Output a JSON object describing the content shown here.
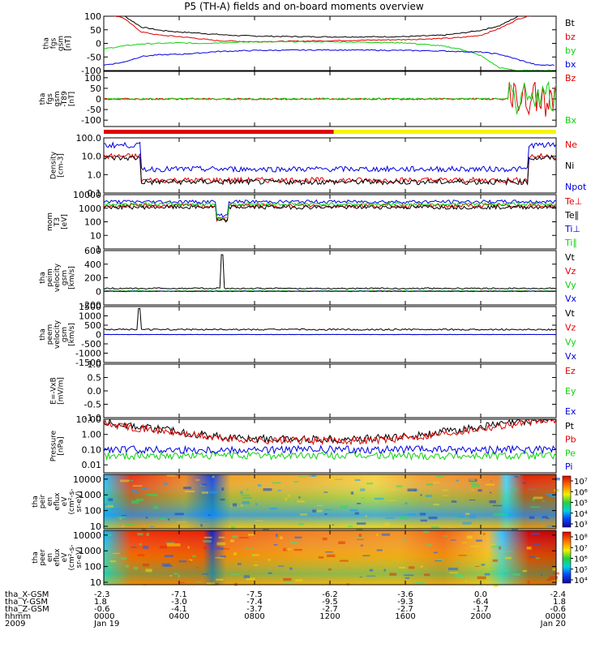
{
  "title": "P5 (TH-A) fields and on-board moments overview",
  "colors": {
    "black": "#000000",
    "red": "#e00000",
    "green": "#10d010",
    "blue": "#0000e0",
    "yellow": "#f5f500",
    "purple": "#a000a0",
    "orange": "#f0a000"
  },
  "chart_data": [
    {
      "type": "line",
      "panel": "fgs",
      "ylabel_lines": [
        "tha",
        "fgs",
        "gsm",
        "[nT]"
      ],
      "yticks": [
        "100",
        "50",
        "0",
        "-50",
        "-100"
      ],
      "ylim": [
        -100,
        100
      ],
      "series": [
        {
          "name": "Bt",
          "color": "#000000"
        },
        {
          "name": "bz",
          "color": "#e00000"
        },
        {
          "name": "by",
          "color": "#10d010"
        },
        {
          "name": "bx",
          "color": "#0000e0"
        }
      ],
      "x_hours": [
        0,
        1,
        2,
        3,
        4,
        5,
        6,
        7,
        8,
        10,
        12,
        14,
        16,
        18,
        19,
        20,
        21,
        22,
        23,
        24
      ],
      "values": {
        "Bt": [
          120,
          105,
          60,
          48,
          42,
          38,
          33,
          29,
          27,
          25,
          24,
          24,
          25,
          30,
          38,
          48,
          65,
          100,
          120,
          120
        ],
        "bz": [
          110,
          95,
          42,
          30,
          25,
          18,
          10,
          8,
          6,
          8,
          10,
          12,
          14,
          18,
          22,
          30,
          55,
          90,
          110,
          110
        ],
        "by": [
          -20,
          -10,
          -2,
          0,
          2,
          0,
          2,
          4,
          6,
          6,
          6,
          4,
          2,
          -10,
          -22,
          -45,
          -90,
          -100,
          -100,
          -100
        ],
        "bx": [
          -80,
          -70,
          -48,
          -42,
          -40,
          -36,
          -30,
          -28,
          -26,
          -25,
          -24,
          -25,
          -26,
          -28,
          -30,
          -32,
          -40,
          -60,
          -80,
          -80
        ]
      }
    },
    {
      "type": "line",
      "panel": "fgs-dsl",
      "ylabel_lines": [
        "tha",
        "fgs",
        "gsm",
        "-T89",
        "[nT]"
      ],
      "yticks": [
        "100",
        "50",
        "0",
        "-50",
        "-100"
      ],
      "ylim": [
        -130,
        130
      ],
      "series": [
        {
          "name": "Bz",
          "color": "#e00000"
        },
        {
          "name": "Bx",
          "color": "#10d010"
        }
      ]
    },
    {
      "type": "line",
      "panel": "density",
      "ylabel_lines": [
        "Density",
        "[cm-3]"
      ],
      "yticks": [
        "100.0",
        "10.0",
        "1.0",
        "0.1"
      ],
      "ylim": [
        0.1,
        100
      ],
      "log": true,
      "series": [
        {
          "name": "Ne",
          "color": "#e00000"
        },
        {
          "name": "Ni",
          "color": "#000000"
        },
        {
          "name": "Npot",
          "color": "#0000e0"
        }
      ]
    },
    {
      "type": "line",
      "panel": "temperature",
      "ylabel_lines": [
        "mom",
        "T3",
        "[eV]"
      ],
      "yticks": [
        "10000",
        "1000",
        "100",
        "10",
        "1"
      ],
      "ylim": [
        1,
        10000
      ],
      "log": true,
      "series": [
        {
          "name": "Te⊥",
          "color": "#e00000"
        },
        {
          "name": "Te∥",
          "color": "#000000"
        },
        {
          "name": "Ti⊥",
          "color": "#0000e0"
        },
        {
          "name": "Ti∥",
          "color": "#10d010"
        }
      ]
    },
    {
      "type": "line",
      "panel": "peim-velocity",
      "ylabel_lines": [
        "tha",
        "peim",
        "velocity",
        "gsm",
        "[km/s]"
      ],
      "yticks": [
        "600",
        "400",
        "200",
        "0",
        "-200"
      ],
      "ylim": [
        -200,
        600
      ],
      "series": [
        {
          "name": "Vt",
          "color": "#000000"
        },
        {
          "name": "Vz",
          "color": "#e00000"
        },
        {
          "name": "Vy",
          "color": "#10d010"
        },
        {
          "name": "Vx",
          "color": "#0000e0"
        }
      ]
    },
    {
      "type": "line",
      "panel": "peem-velocity",
      "ylabel_lines": [
        "tha",
        "peem",
        "velocity",
        "gsm",
        "[km/s]"
      ],
      "yticks": [
        "1500",
        "1000",
        "500",
        "0",
        "-500",
        "-1000",
        "-1500"
      ],
      "ylim": [
        -1500,
        1500
      ],
      "series": [
        {
          "name": "Vt",
          "color": "#000000"
        },
        {
          "name": "Vz",
          "color": "#e00000"
        },
        {
          "name": "Vy",
          "color": "#10d010"
        },
        {
          "name": "Vx",
          "color": "#0000e0"
        }
      ]
    },
    {
      "type": "line",
      "panel": "efield",
      "ylabel_lines": [
        "E=-VxB",
        "[mV/m]"
      ],
      "yticks": [
        "1.0",
        "0.5",
        "0.0",
        "-0.5",
        "-1.0"
      ],
      "ylim": [
        -1,
        1
      ],
      "series": [
        {
          "name": "Ez",
          "color": "#e00000"
        },
        {
          "name": "Ey",
          "color": "#10d010"
        },
        {
          "name": "Ex",
          "color": "#0000e0"
        }
      ]
    },
    {
      "type": "line",
      "panel": "pressure",
      "ylabel_lines": [
        "Pressure",
        "[nPa]"
      ],
      "yticks": [
        "10.00",
        "1.00",
        "0.10",
        "0.01"
      ],
      "ylim": [
        0.003,
        10
      ],
      "log": true,
      "series": [
        {
          "name": "Pt",
          "color": "#000000"
        },
        {
          "name": "Pb",
          "color": "#e00000"
        },
        {
          "name": "Pe",
          "color": "#10d010"
        },
        {
          "name": "Pi",
          "color": "#0000e0"
        }
      ]
    },
    {
      "type": "heatmap",
      "panel": "peir-en-eflux",
      "ylabel_lines": [
        "tha",
        "peir",
        "en",
        "eflux",
        "eV",
        "(cm²-s-",
        "sr-eV)"
      ],
      "yticks": [
        "10000",
        "1000",
        "100",
        "10"
      ],
      "ylim": [
        7,
        20000
      ],
      "log": true,
      "colorbar_ticks": [
        "10⁷",
        "10⁶",
        "10⁵",
        "10⁴",
        "10³"
      ]
    },
    {
      "type": "heatmap",
      "panel": "peer-en-eflux",
      "ylabel_lines": [
        "tha",
        "peer",
        "en",
        "eflux",
        "eV",
        "(cm²-s-",
        "sr-eV)"
      ],
      "yticks": [
        "10000",
        "1000",
        "100",
        "10"
      ],
      "ylim": [
        7,
        20000
      ],
      "log": true,
      "colorbar_ticks": [
        "10⁸",
        "10⁷",
        "10⁶",
        "10⁵",
        "10⁴"
      ]
    }
  ],
  "mode_bar": {
    "red_until_hour": 12.2,
    "after_color": "#f5f500"
  },
  "xaxis": {
    "row_labels": [
      "tha_X-GSM",
      "tha_Y-GSM",
      "tha_Z-GSM",
      "hhmm",
      "2009"
    ],
    "columns": [
      {
        "hour": 0,
        "values": [
          "-2.3",
          "1.8",
          "-0.6",
          "0000",
          "Jan 19"
        ]
      },
      {
        "hour": 4,
        "values": [
          "-7.1",
          "-3.0",
          "-4.1",
          "0400",
          ""
        ]
      },
      {
        "hour": 8,
        "values": [
          "-7.5",
          "-7.4",
          "-3.7",
          "0800",
          ""
        ]
      },
      {
        "hour": 12,
        "values": [
          "-6.2",
          "-9.5",
          "-2.7",
          "1200",
          ""
        ]
      },
      {
        "hour": 16,
        "values": [
          "-3.6",
          "-9.3",
          "-2.7",
          "1600",
          ""
        ]
      },
      {
        "hour": 20,
        "values": [
          "0.0",
          "-6.4",
          "-1.7",
          "2000",
          ""
        ]
      },
      {
        "hour": 24,
        "values": [
          "-2.4",
          "1.8",
          "-0.6",
          "0000",
          "Jan 20"
        ]
      }
    ]
  }
}
